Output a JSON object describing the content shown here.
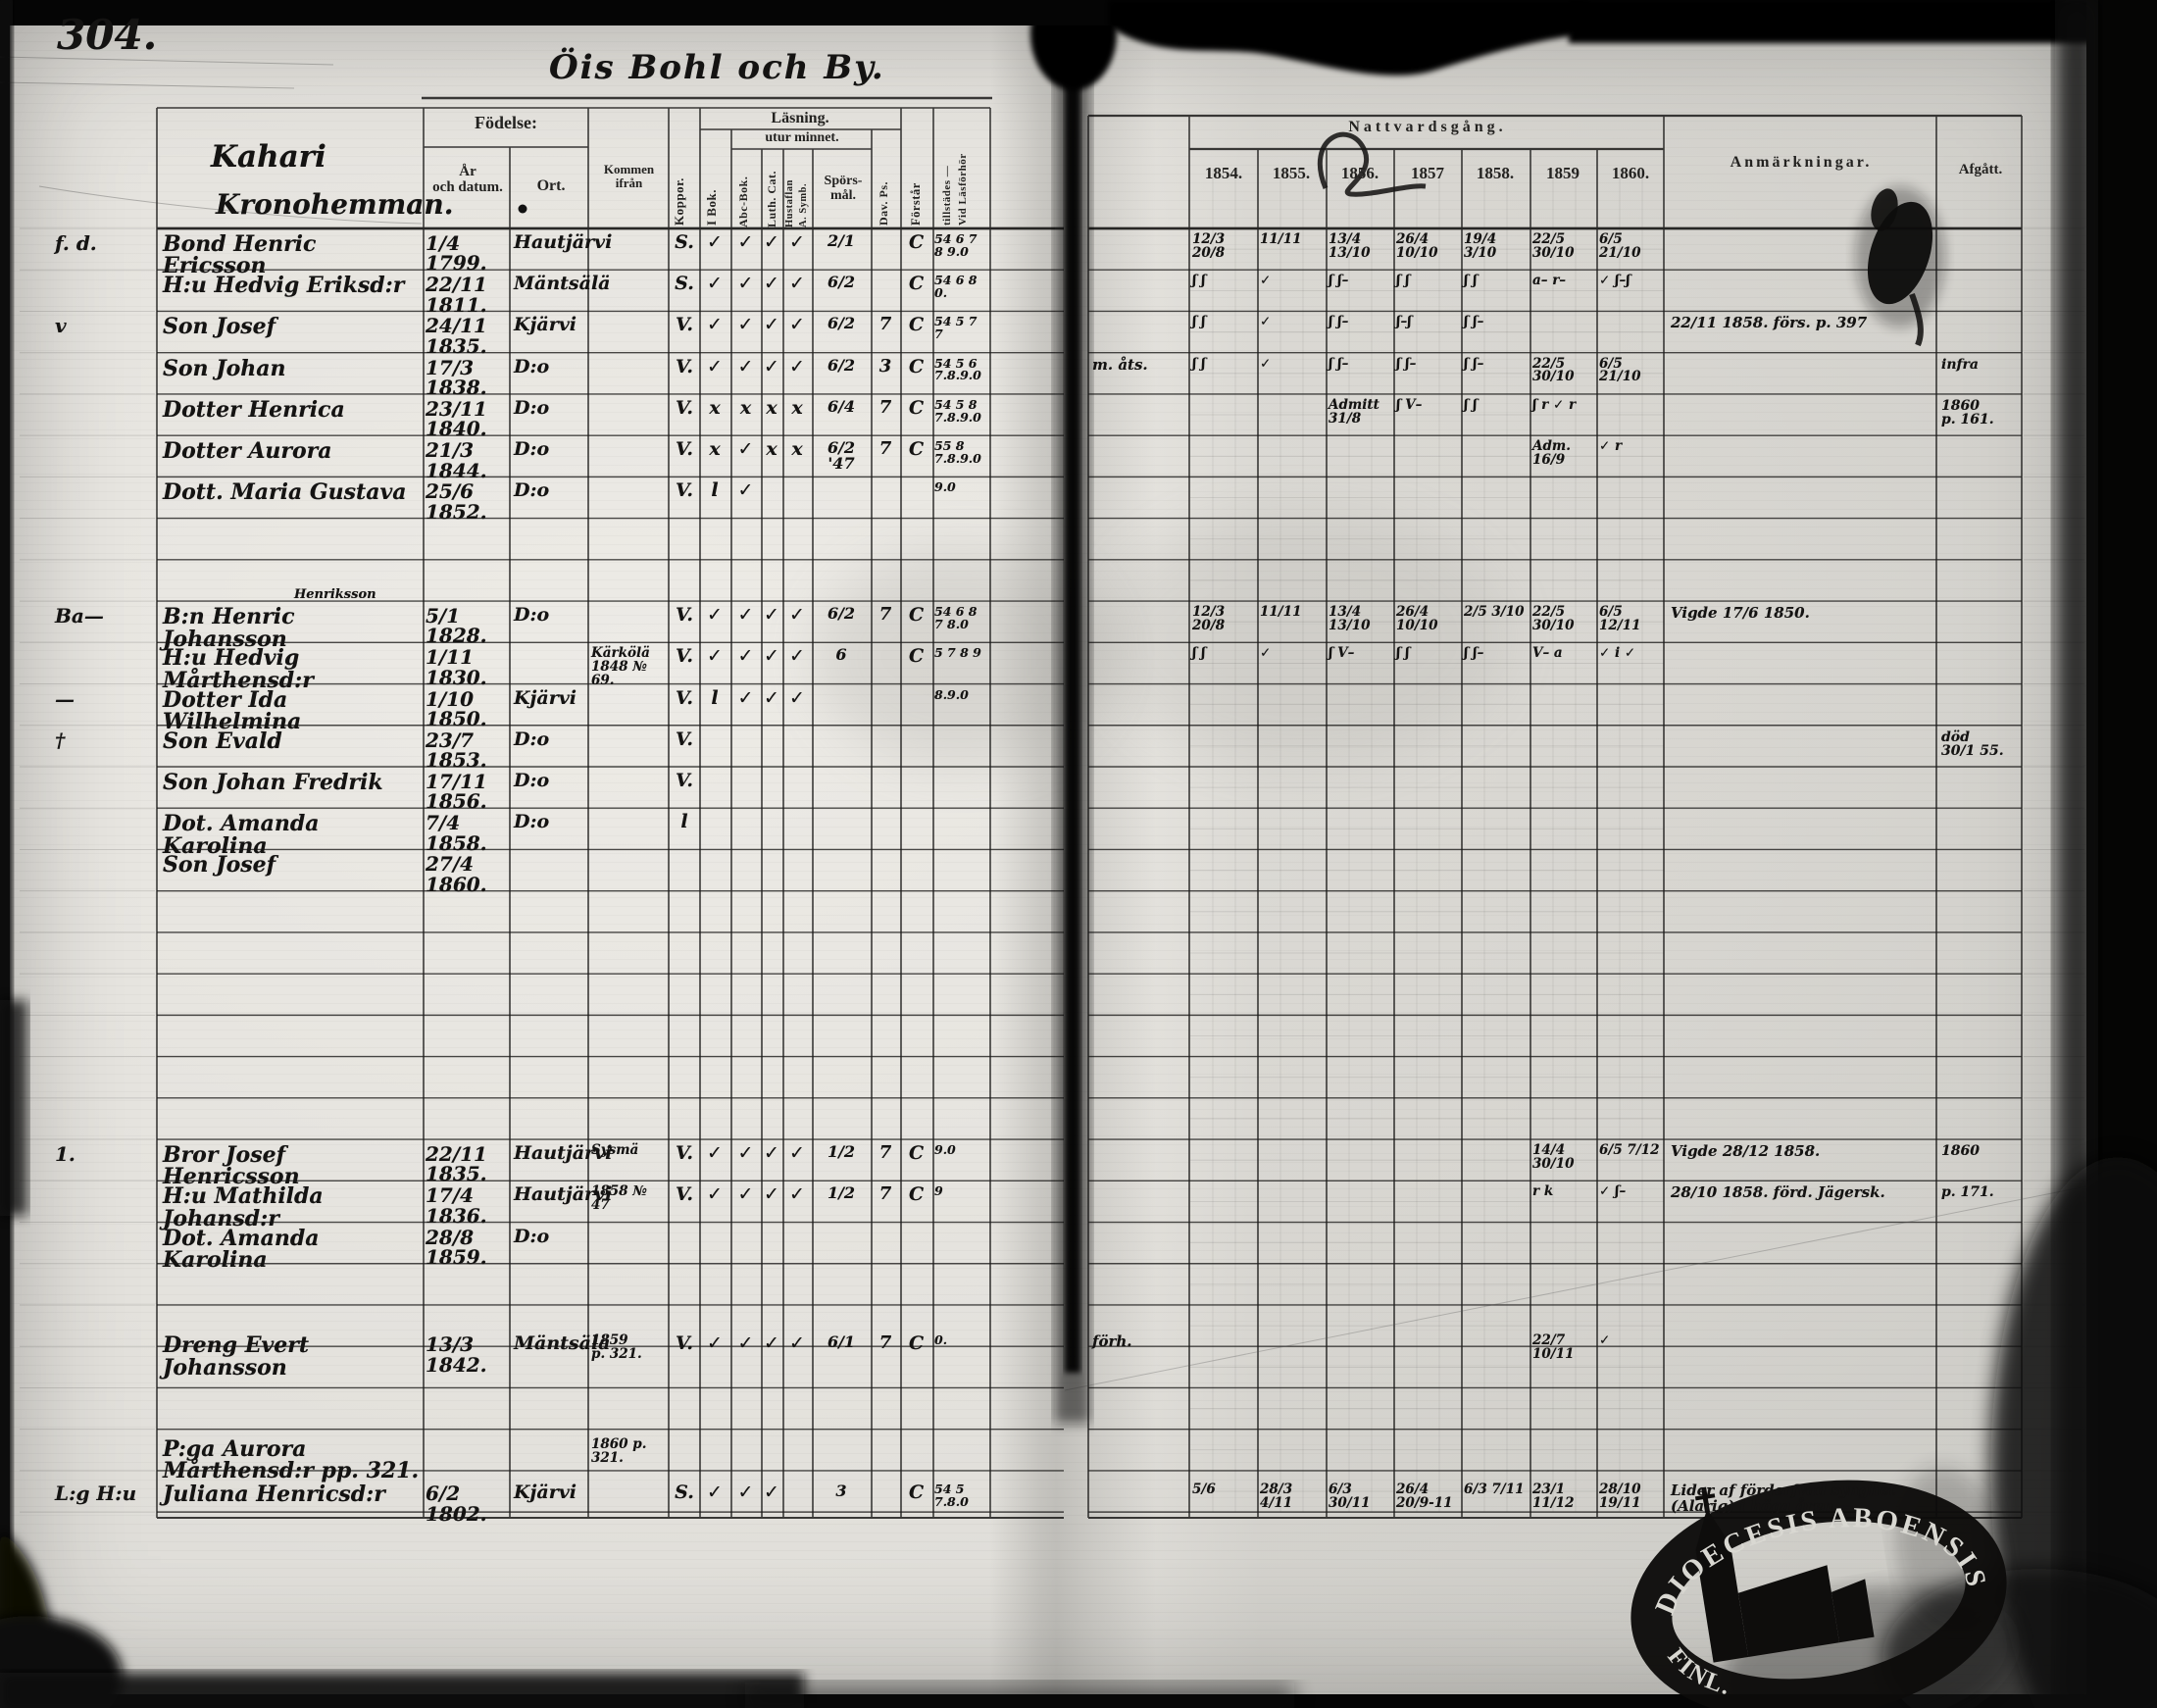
{
  "page": {
    "number": "304.",
    "village_header": "Öis Bohl och By.",
    "farm_line1": "Kahari",
    "farm_line2": "Kronohemman."
  },
  "columns": {
    "fodelse": "Födelse:",
    "ar_datum": "År\noch datum.",
    "ort": "Ort.",
    "kommen": "Kommen ifrån",
    "koppor": "Koppor.",
    "lasning": "Läsning.",
    "utur": "utur minnet.",
    "i_bok": "I Bok.",
    "abc_bok": "Abc-Bok.",
    "luth_cat": "Luth. Cat.",
    "hustaflan": "Hustaflan",
    "a_symb": "A. Symb.",
    "sporsmal": "Spörs-\nmål.",
    "dav_ps": "Dav. Ps.",
    "forstar": "Förstår",
    "vid_lasforhor": "Vid Läsförhör",
    "tillstades": "tillstädes —",
    "nattvardsgang": "Nattvardsgång.",
    "anmarkningar": "Anmärkningar.",
    "afgatt": "Afgått."
  },
  "years": [
    "1854.",
    "1855.",
    "1856.",
    "1857",
    "1858.",
    "1859",
    "1860."
  ],
  "stamp": {
    "arc_text": "DIOECESIS ABOENSIS.",
    "left_text": "FINL."
  },
  "rows": [
    {
      "line": 0,
      "margin": "f. d.",
      "name": "Bond Henric Ericsson",
      "date": "1/4 1799.",
      "ort": "Hautjärvi",
      "kop": "S.",
      "c0": "✓",
      "c1": "✓",
      "c2": "✓",
      "c3": "✓",
      "sp": "2/1",
      "fr": "C",
      "vid": "54 6 7\n8 9.0",
      "y54": "12/3 20/8",
      "y55": "11/11",
      "y56": "13/4 13/10",
      "y57": "26/4 10/10",
      "y58": "19/4 3/10",
      "y59": "22/5 30/10",
      "y60": "6/5 21/10"
    },
    {
      "line": 1,
      "name": "H:u Hedvig Eriksd:r",
      "date": "22/11 1811.",
      "ort": "Mäntsälä",
      "kop": "S.",
      "c0": "✓",
      "c1": "✓",
      "c2": "✓",
      "c3": "✓",
      "sp": "6/2",
      "fr": "C",
      "vid": "54 6 8\n0.",
      "y54": "ʃ ʃ",
      "y55": "✓",
      "y56": "ʃ ʃ–",
      "y57": "ʃ ʃ",
      "y58": "ʃ ʃ",
      "y59": "a– r–",
      "y60": "✓ ʃ–ʃ"
    },
    {
      "line": 2,
      "margin": "v",
      "name": "Son Josef",
      "date": "24/11 1835.",
      "ort": "Kjärvi",
      "kop": "V.",
      "c0": "✓",
      "c1": "✓",
      "c2": "✓",
      "c3": "✓",
      "sp": "6/2",
      "dav": "7",
      "fr": "C",
      "vid": "54 5 7\n7",
      "y54": "ʃ ʃ",
      "y55": "✓",
      "y56": "ʃ ʃ–",
      "y57": "ʃ–ʃ",
      "y58": "ʃ ʃ–",
      "rem": "22/11 1858. förs. p. 397"
    },
    {
      "line": 3,
      "name": "Son Johan",
      "date": "17/3 1838.",
      "ort": "D:o",
      "kop": "V.",
      "c0": "✓",
      "c1": "✓",
      "c2": "✓",
      "c3": "✓",
      "sp": "6/2",
      "dav": "3",
      "fr": "C",
      "vid": "54 5 6\n7.8.9.0",
      "pre": "m. åts.",
      "y54": "ʃ ʃ",
      "y55": "✓",
      "y56": "ʃ ʃ–",
      "y57": "ʃ ʃ–",
      "y58": "ʃ ʃ–",
      "y59": "22/5 30/10",
      "y60": "6/5 21/10",
      "afg": "infra"
    },
    {
      "line": 4,
      "name": "Dotter Henrica",
      "date": "23/11 1840.",
      "ort": "D:o",
      "kop": "V.",
      "c0": "x",
      "c1": "x",
      "c2": "x",
      "c3": "x",
      "sp": "6/4",
      "dav": "7",
      "fr": "C",
      "vid": "54 5 8\n7.8.9.0",
      "y56": "Admitt\n31/8",
      "y57": "ʃ V–",
      "y58": "ʃ ʃ",
      "y59": "ʃ r ✓ r",
      "afg": "1860\np. 161."
    },
    {
      "line": 5,
      "name": "Dotter Aurora",
      "date": "21/3 1844.",
      "ort": "D:o",
      "kop": "V.",
      "c0": "x",
      "c1": "✓",
      "c2": "x",
      "c3": "x",
      "sp": "6/2 '47",
      "dav": "7",
      "fr": "C",
      "vid": "55 8\n7.8.9.0",
      "y59": "Adm.\n16/9",
      "y60": "✓ r"
    },
    {
      "line": 6,
      "name": "Dott. Maria Gustava",
      "date": "25/6 1852.",
      "ort": "D:o",
      "kop": "V.",
      "c0": "l",
      "c1": "✓",
      "vid": "9.0"
    },
    {
      "line": 9,
      "margin": "Ba—",
      "above": "Henriksson",
      "name": "B:n Henric Johansson",
      "date": "5/1 1828.",
      "ort": "D:o",
      "kop": "V.",
      "c0": "✓",
      "c1": "✓",
      "c2": "✓",
      "c3": "✓",
      "sp": "6/2",
      "dav": "7",
      "fr": "C",
      "vid": "54 6 8\n7 8.0",
      "y54": "12/3 20/8",
      "y55": "11/11",
      "y56": "13/4 13/10",
      "y57": "26/4 10/10",
      "y58": "2/5 3/10",
      "y59": "22/5 30/10",
      "y60": "6/5 12/11",
      "rem": "Vigde 17/6 1850."
    },
    {
      "line": 10,
      "name": "H:u Hedvig Mårthensd:r",
      "date": "1/11 1830.",
      "from": "Kärkölä\n1848 № 69.",
      "kop": "V.",
      "c0": "✓",
      "c1": "✓",
      "c2": "✓",
      "c3": "✓",
      "sp": "6",
      "fr": "C",
      "vid": "5 7 8 9",
      "y54": "ʃ ʃ",
      "y55": "✓",
      "y56": "ʃ V–",
      "y57": "ʃ ʃ",
      "y58": "ʃ ʃ–",
      "y59": "V– a",
      "y60": "✓ i ✓"
    },
    {
      "line": 11,
      "margin": "—",
      "name": "Dotter Ida Wilhelmina",
      "date": "1/10 1850.",
      "ort": "Kjärvi",
      "kop": "V.",
      "c0": "l",
      "c1": "✓",
      "c2": "✓",
      "c3": "✓",
      "vid": "8.9.0"
    },
    {
      "line": 12,
      "margin": "†",
      "name": "Son Evald",
      "date": "23/7 1853.",
      "ort": "D:o",
      "kop": "V.",
      "afg": "död\n30/1 55."
    },
    {
      "line": 13,
      "name": "Son Johan Fredrik",
      "date": "17/11 1856.",
      "ort": "D:o",
      "kop": "V."
    },
    {
      "line": 14,
      "name": "Dot. Amanda Karolina",
      "date": "7/4 1858.",
      "ort": "D:o",
      "kop": "l"
    },
    {
      "line": 15,
      "name": "Son Josef",
      "date": "27/4 1860."
    },
    {
      "line": 22,
      "margin": "1.",
      "name": "Bror Josef Henricsson",
      "date": "22/11 1835.",
      "ort": "Hautjärvi",
      "from": "Sysmä",
      "kop": "V.",
      "c0": "✓",
      "c1": "✓",
      "c2": "✓",
      "c3": "✓",
      "sp": "1/2",
      "dav": "7",
      "fr": "C",
      "vid": "9.0",
      "y59": "14/4 30/10",
      "y60": "6/5 7/12",
      "rem": "Vigde 28/12 1858.",
      "afg": "1860"
    },
    {
      "line": 23,
      "name": "H:u Mathilda Johansd:r",
      "date": "17/4 1836.",
      "ort": "Hautjärvi",
      "from": "1858 № 47",
      "kop": "V.",
      "c0": "✓",
      "c1": "✓",
      "c2": "✓",
      "c3": "✓",
      "sp": "1/2",
      "dav": "7",
      "fr": "C",
      "vid": "9",
      "y59": "r k",
      "y60": "✓ ʃ–",
      "rem": "28/10 1858. förd. Jägersk.",
      "afg": "p. 171."
    },
    {
      "line": 24,
      "name": "Dot. Amanda Karolina",
      "date": "28/8 1859.",
      "ort": "D:o"
    },
    {
      "line": 26.6,
      "name": "Dreng Evert Johansson",
      "date": "13/3 1842.",
      "ort": "Mäntsälä",
      "from": "1859\np. 321.",
      "kop": "V.",
      "c0": "✓",
      "c1": "✓",
      "c2": "✓",
      "c3": "✓",
      "sp": "6/1",
      "dav": "7",
      "fr": "C",
      "vid": "0.",
      "pre": "förh.",
      "y59": "22/7 10/11",
      "y60": "✓"
    },
    {
      "line": 29.1,
      "name": "P:ga Aurora Mårthensd:r pp. 321.",
      "from": "1860 p. 321."
    },
    {
      "line": 30.2,
      "margin": "L:g H:u",
      "name": "Juliana Henricsd:r",
      "date": "6/2 1802.",
      "ort": "Kjärvi",
      "kop": "S.",
      "c0": "✓",
      "c1": "✓",
      "c2": "✓",
      "sp": "3",
      "fr": "C",
      "vid": "54 5\n7.8.0",
      "y54": "5/6",
      "y55": "28/3 4/11",
      "y56": "6/3 30/11",
      "y57": "26/4 20/9-11",
      "y58": "6/3 7/11",
      "y59": "23/1 11/12",
      "y60": "28/10 19/11",
      "rem": "Lider af förderfvad synghet (Alarig) i höga åren —"
    }
  ]
}
